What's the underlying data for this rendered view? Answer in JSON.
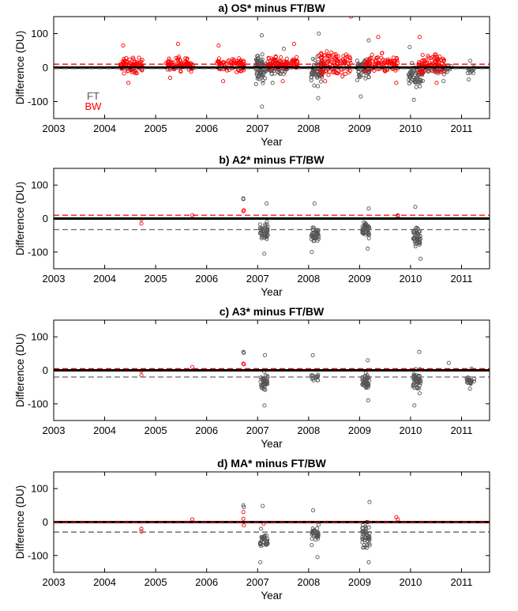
{
  "colors": {
    "FT": "#555555",
    "BW": "#ff0000",
    "zero_line": "#000000"
  },
  "chart_data": [
    {
      "type": "scatter",
      "title": "a) OS* minus FT/BW",
      "xlabel": "Year",
      "ylabel": "Difference (DU)",
      "xlim": [
        2003,
        2011.55
      ],
      "ylim": [
        -150,
        150
      ],
      "xticks": [
        2003,
        2004,
        2005,
        2006,
        2007,
        2008,
        2009,
        2010,
        2011
      ],
      "yticks": [
        -100,
        0,
        100
      ],
      "legend": {
        "position": "bottom-left",
        "entries": [
          "FT",
          "BW"
        ]
      },
      "mean_lines": {
        "FT": -3,
        "BW": 10
      },
      "series": [
        {
          "name": "FT",
          "color": "#555555",
          "clusters": [
            {
              "x_range": [
                2006.95,
                2007.15
              ],
              "y_mean": -5,
              "y_range": [
                -115,
                95
              ],
              "n": 70
            },
            {
              "x_range": [
                2007.15,
                2007.6
              ],
              "y_mean": 0,
              "y_range": [
                -45,
                55
              ],
              "n": 60
            },
            {
              "x_range": [
                2008.05,
                2008.3
              ],
              "y_mean": -10,
              "y_range": [
                -90,
                100
              ],
              "n": 70
            },
            {
              "x_range": [
                2008.95,
                2009.2
              ],
              "y_mean": -5,
              "y_range": [
                -85,
                80
              ],
              "n": 60
            },
            {
              "x_range": [
                2009.95,
                2010.25
              ],
              "y_mean": -20,
              "y_range": [
                -95,
                60
              ],
              "n": 70
            },
            {
              "x_range": [
                2010.3,
                2010.8
              ],
              "y_mean": -5,
              "y_range": [
                -40,
                30
              ],
              "n": 40
            },
            {
              "x_range": [
                2011.1,
                2011.25
              ],
              "y_mean": -5,
              "y_range": [
                -35,
                20
              ],
              "n": 15
            }
          ]
        },
        {
          "name": "BW",
          "color": "#ff0000",
          "clusters": [
            {
              "x_range": [
                2004.3,
                2004.75
              ],
              "y_mean": 5,
              "y_range": [
                -45,
                65
              ],
              "n": 90
            },
            {
              "x_range": [
                2005.2,
                2005.75
              ],
              "y_mean": 8,
              "y_range": [
                -30,
                70
              ],
              "n": 90
            },
            {
              "x_range": [
                2006.2,
                2006.75
              ],
              "y_mean": 5,
              "y_range": [
                -40,
                65
              ],
              "n": 80
            },
            {
              "x_range": [
                2007.2,
                2007.8
              ],
              "y_mean": 10,
              "y_range": [
                -40,
                70
              ],
              "n": 90
            },
            {
              "x_range": [
                2008.2,
                2008.85
              ],
              "y_mean": 10,
              "y_range": [
                -40,
                150
              ],
              "n": 110
            },
            {
              "x_range": [
                2009.1,
                2009.75
              ],
              "y_mean": 10,
              "y_range": [
                -45,
                90
              ],
              "n": 100
            },
            {
              "x_range": [
                2010.15,
                2010.7
              ],
              "y_mean": 10,
              "y_range": [
                -45,
                90
              ],
              "n": 90
            }
          ]
        }
      ]
    },
    {
      "type": "scatter",
      "title": "b) A2* minus FT/BW",
      "xlabel": "Year",
      "ylabel": "Difference (DU)",
      "xlim": [
        2003,
        2011.55
      ],
      "ylim": [
        -150,
        150
      ],
      "xticks": [
        2003,
        2004,
        2005,
        2006,
        2007,
        2008,
        2009,
        2010,
        2011
      ],
      "yticks": [
        -100,
        0,
        100
      ],
      "mean_lines": {
        "FT": -33,
        "BW": 10
      },
      "series": [
        {
          "name": "FT",
          "color": "#555555",
          "clusters": [
            {
              "x_range": [
                2007.05,
                2007.2
              ],
              "y_mean": -35,
              "y_range": [
                -105,
                45
              ],
              "n": 45
            },
            {
              "x_range": [
                2008.05,
                2008.2
              ],
              "y_mean": -45,
              "y_range": [
                -100,
                45
              ],
              "n": 40
            },
            {
              "x_range": [
                2009.05,
                2009.2
              ],
              "y_mean": -35,
              "y_range": [
                -90,
                30
              ],
              "n": 45
            },
            {
              "x_range": [
                2010.05,
                2010.2
              ],
              "y_mean": -55,
              "y_range": [
                -120,
                35
              ],
              "n": 50
            }
          ],
          "points": [
            [
              2006.72,
              60
            ],
            [
              2006.72,
              58
            ],
            [
              2009.75,
              10
            ]
          ]
        },
        {
          "name": "BW",
          "color": "#ff0000",
          "points": [
            [
              2004.72,
              -2
            ],
            [
              2004.72,
              -15
            ],
            [
              2005.72,
              10
            ],
            [
              2006.72,
              22
            ],
            [
              2006.73,
              25
            ],
            [
              2009.75,
              8
            ]
          ]
        }
      ]
    },
    {
      "type": "scatter",
      "title": "c) A3* minus FT/BW",
      "xlabel": "Year",
      "ylabel": "Difference (DU)",
      "xlim": [
        2003,
        2011.55
      ],
      "ylim": [
        -150,
        150
      ],
      "xticks": [
        2003,
        2004,
        2005,
        2006,
        2007,
        2008,
        2009,
        2010,
        2011
      ],
      "yticks": [
        -100,
        0,
        100
      ],
      "mean_lines": {
        "FT": -20,
        "BW": 5
      },
      "series": [
        {
          "name": "FT",
          "color": "#555555",
          "clusters": [
            {
              "x_range": [
                2007.05,
                2007.2
              ],
              "y_mean": -35,
              "y_range": [
                -105,
                45
              ],
              "n": 40
            },
            {
              "x_range": [
                2008.05,
                2008.2
              ],
              "y_mean": -20,
              "y_range": [
                -30,
                45
              ],
              "n": 15
            },
            {
              "x_range": [
                2009.05,
                2009.2
              ],
              "y_mean": -35,
              "y_range": [
                -90,
                30
              ],
              "n": 45
            },
            {
              "x_range": [
                2010.05,
                2010.2
              ],
              "y_mean": -30,
              "y_range": [
                -105,
                55
              ],
              "n": 50
            },
            {
              "x_range": [
                2011.1,
                2011.25
              ],
              "y_mean": -30,
              "y_range": [
                -55,
                5
              ],
              "n": 25
            }
          ],
          "points": [
            [
              2006.72,
              55
            ],
            [
              2006.73,
              52
            ],
            [
              2010.75,
              22
            ]
          ]
        },
        {
          "name": "BW",
          "color": "#ff0000",
          "points": [
            [
              2004.72,
              -2
            ],
            [
              2004.72,
              -15
            ],
            [
              2005.72,
              10
            ],
            [
              2006.72,
              20
            ],
            [
              2006.73,
              18
            ]
          ]
        }
      ]
    },
    {
      "type": "scatter",
      "title": "d) MA* minus FT/BW",
      "xlabel": "Year",
      "ylabel": "Difference (DU)",
      "xlim": [
        2003,
        2011.55
      ],
      "ylim": [
        -150,
        150
      ],
      "xticks": [
        2003,
        2004,
        2005,
        2006,
        2007,
        2008,
        2009,
        2010,
        2011
      ],
      "yticks": [
        -100,
        0,
        100
      ],
      "mean_lines": {
        "FT": -30,
        "BW": 0
      },
      "series": [
        {
          "name": "FT",
          "color": "#555555",
          "clusters": [
            {
              "x_range": [
                2007.05,
                2007.2
              ],
              "y_mean": -55,
              "y_range": [
                -120,
                -20
              ],
              "n": 35
            },
            {
              "x_range": [
                2008.05,
                2008.2
              ],
              "y_mean": -40,
              "y_range": [
                -105,
                35
              ],
              "n": 35
            },
            {
              "x_range": [
                2009.05,
                2009.2
              ],
              "y_mean": -40,
              "y_range": [
                -120,
                60
              ],
              "n": 50
            }
          ],
          "points": [
            [
              2006.72,
              50
            ],
            [
              2006.73,
              45
            ],
            [
              2007.1,
              48
            ]
          ]
        },
        {
          "name": "BW",
          "color": "#ff0000",
          "points": [
            [
              2004.72,
              -20
            ],
            [
              2004.72,
              -28
            ],
            [
              2005.72,
              8
            ],
            [
              2006.72,
              10
            ],
            [
              2006.73,
              -10
            ],
            [
              2006.72,
              30
            ],
            [
              2009.72,
              15
            ],
            [
              2009.75,
              8
            ],
            [
              2007.12,
              -5
            ]
          ]
        }
      ]
    }
  ]
}
